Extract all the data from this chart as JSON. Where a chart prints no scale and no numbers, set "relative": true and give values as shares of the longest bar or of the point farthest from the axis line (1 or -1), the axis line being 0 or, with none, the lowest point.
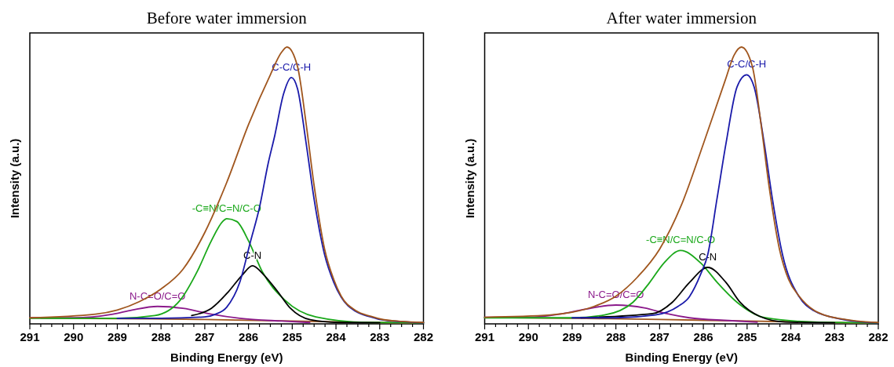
{
  "chart_data": [
    {
      "type": "line",
      "title": "Before water immersion",
      "xlabel": "Binding Energy (eV)",
      "ylabel": "Intensity (a.u.)",
      "relative": true,
      "xlim": [
        291,
        282
      ],
      "xticks": [
        291,
        {
          "value": 290.75,
          "label": null
        },
        {
          "value": 290.5,
          "label": null
        },
        {
          "value": 290.25,
          "label": null
        },
        290,
        {
          "value": 289.75,
          "label": null
        },
        {
          "value": 289.5,
          "label": null
        },
        {
          "value": 289.25,
          "label": null
        },
        289,
        {
          "value": 288.75,
          "label": null
        },
        {
          "value": 288.5,
          "label": null
        },
        {
          "value": 288.25,
          "label": null
        },
        288,
        {
          "value": 287.75,
          "label": null
        },
        {
          "value": 287.5,
          "label": null
        },
        {
          "value": 287.25,
          "label": null
        },
        287,
        {
          "value": 286.75,
          "label": null
        },
        {
          "value": 286.5,
          "label": null
        },
        {
          "value": 286.25,
          "label": null
        },
        286,
        {
          "value": 285.75,
          "label": null
        },
        {
          "value": 285.5,
          "label": null
        },
        {
          "value": 285.25,
          "label": null
        },
        285,
        {
          "value": 284.75,
          "label": null
        },
        {
          "value": 284.5,
          "label": null
        },
        {
          "value": 284.25,
          "label": null
        },
        284,
        {
          "value": 283.75,
          "label": null
        },
        {
          "value": 283.5,
          "label": null
        },
        {
          "value": 283.25,
          "label": null
        },
        283,
        {
          "value": 282.75,
          "label": null
        },
        {
          "value": 282.5,
          "label": null
        },
        {
          "value": 282.25,
          "label": null
        },
        282
      ],
      "tick_labels": "x",
      "series": [
        {
          "color": "#a0561e",
          "x": [
            290.75,
            289,
            287,
            285,
            283,
            282.25
          ],
          "values": [
            0.021,
            0.019,
            0.016,
            0.01,
            0.005,
            0.003
          ]
        },
        {
          "name": "N-C=O/C=O",
          "color": "#8b1a8b",
          "x": [
            291,
            290,
            289.1,
            288.66,
            288.08,
            287.5,
            286.85,
            286.2,
            285.23,
            284.6
          ],
          "values": [
            0.022,
            0.022,
            0.035,
            0.05,
            0.063,
            0.056,
            0.035,
            0.02,
            0.01,
            0.005
          ]
        },
        {
          "name": "-C≡N/C=N/C-O",
          "color": "#1aa81a",
          "x": [
            291,
            290,
            289,
            288.14,
            287.56,
            287.17,
            286.85,
            286.59,
            286.5,
            286.27,
            286,
            285.69,
            285.17,
            284.46,
            283.3,
            282
          ],
          "values": [
            0.02,
            0.02,
            0.02,
            0.03,
            0.086,
            0.19,
            0.3,
            0.37,
            0.38,
            0.37,
            0.3,
            0.19,
            0.086,
            0.025,
            0.005,
            0.004
          ]
        },
        {
          "name": "C-N",
          "color": "#000000",
          "x": [
            287.3,
            286.85,
            286.46,
            286.14,
            285.91,
            285.65,
            285.33,
            285.04,
            284.59,
            283.94,
            283
          ],
          "values": [
            0.03,
            0.056,
            0.116,
            0.177,
            0.21,
            0.177,
            0.116,
            0.056,
            0.015,
            0.005,
            0.004
          ]
        },
        {
          "name": "C-C/C-H",
          "color": "#1a1aaa",
          "x": [
            289,
            288,
            287,
            286.75,
            286.5,
            286.2,
            285.95,
            285.75,
            285.55,
            285.4,
            285.2,
            285.02,
            284.88,
            284.68,
            284.5,
            284.26,
            284.05,
            283.88,
            283.55,
            283.2,
            282.97,
            282.5,
            282
          ],
          "values": [
            0.02,
            0.02,
            0.025,
            0.035,
            0.06,
            0.15,
            0.3,
            0.42,
            0.58,
            0.68,
            0.83,
            0.89,
            0.85,
            0.65,
            0.45,
            0.25,
            0.15,
            0.096,
            0.045,
            0.025,
            0.015,
            0.008,
            0.004
          ]
        },
        {
          "color": "#a0561e",
          "x": [
            291,
            289.5,
            289,
            288.5,
            288,
            287.5,
            287,
            286.5,
            286,
            285.5,
            285.25,
            285.12,
            284.88,
            284.68,
            284.5,
            284.26,
            284.05,
            283.88,
            283.55,
            283.2,
            282.97,
            282.5,
            282
          ],
          "values": [
            0.022,
            0.035,
            0.05,
            0.08,
            0.126,
            0.197,
            0.33,
            0.51,
            0.72,
            0.9,
            0.98,
            1,
            0.93,
            0.72,
            0.5,
            0.27,
            0.16,
            0.1,
            0.048,
            0.027,
            0.017,
            0.009,
            0.005
          ]
        }
      ]
    },
    {
      "type": "line",
      "title": "After water immersion",
      "xlabel": "Binding Energy (eV)",
      "ylabel": "Intensity (a.u.)",
      "relative": true,
      "xlim": [
        291,
        282
      ],
      "xticks": [
        291,
        {
          "value": 290.75,
          "label": null
        },
        {
          "value": 290.5,
          "label": null
        },
        {
          "value": 290.25,
          "label": null
        },
        290,
        {
          "value": 289.75,
          "label": null
        },
        {
          "value": 289.5,
          "label": null
        },
        {
          "value": 289.25,
          "label": null
        },
        289,
        {
          "value": 288.75,
          "label": null
        },
        {
          "value": 288.5,
          "label": null
        },
        {
          "value": 288.25,
          "label": null
        },
        288,
        {
          "value": 287.75,
          "label": null
        },
        {
          "value": 287.5,
          "label": null
        },
        {
          "value": 287.25,
          "label": null
        },
        287,
        {
          "value": 286.75,
          "label": null
        },
        {
          "value": 286.5,
          "label": null
        },
        {
          "value": 286.25,
          "label": null
        },
        286,
        {
          "value": 285.75,
          "label": null
        },
        {
          "value": 285.5,
          "label": null
        },
        {
          "value": 285.25,
          "label": null
        },
        285,
        {
          "value": 284.75,
          "label": null
        },
        {
          "value": 284.5,
          "label": null
        },
        {
          "value": 284.25,
          "label": null
        },
        284,
        {
          "value": 283.75,
          "label": null
        },
        {
          "value": 283.5,
          "label": null
        },
        {
          "value": 283.25,
          "label": null
        },
        283,
        {
          "value": 282.75,
          "label": null
        },
        {
          "value": 282.5,
          "label": null
        },
        {
          "value": 282.25,
          "label": null
        },
        282
      ],
      "tick_labels": "x",
      "series": [
        {
          "color": "#a0561e",
          "x": [
            290.75,
            289,
            287,
            285,
            283,
            282.25
          ],
          "values": [
            0.023,
            0.02,
            0.016,
            0.01,
            0.005,
            0.003
          ]
        },
        {
          "name": "N-C=O/C=O",
          "color": "#8b1a8b",
          "x": [
            291,
            290,
            289.29,
            288.71,
            288,
            287.35,
            286.84,
            286.32,
            285.42,
            284.77
          ],
          "values": [
            0.024,
            0.024,
            0.035,
            0.053,
            0.068,
            0.058,
            0.037,
            0.022,
            0.012,
            0.006
          ]
        },
        {
          "name": "-C≡N/C=N/C-O",
          "color": "#1aa81a",
          "x": [
            291,
            290,
            289,
            288.26,
            287.61,
            287.23,
            286.9,
            286.52,
            286.06,
            285.68,
            285.23,
            284.58,
            283.48,
            282
          ],
          "values": [
            0.022,
            0.022,
            0.022,
            0.032,
            0.078,
            0.149,
            0.22,
            0.265,
            0.22,
            0.149,
            0.078,
            0.022,
            0.007,
            0.004
          ]
        },
        {
          "name": "C-N",
          "color": "#000000",
          "x": [
            288.8,
            287.16,
            286.71,
            286.32,
            285.9,
            285.48,
            285.16,
            284.71,
            284.13,
            283
          ],
          "values": [
            0.022,
            0.037,
            0.078,
            0.149,
            0.204,
            0.149,
            0.078,
            0.027,
            0.007,
            0.004
          ]
        },
        {
          "name": "C-C/C-H",
          "color": "#1a1aaa",
          "x": [
            289,
            288,
            287.1,
            286.58,
            286.32,
            286.06,
            285.9,
            285.69,
            285.48,
            285.23,
            285.01,
            284.84,
            284.61,
            284.42,
            284.19,
            283.81,
            283.48,
            282.84,
            282.5,
            282
          ],
          "values": [
            0.022,
            0.022,
            0.032,
            0.063,
            0.098,
            0.18,
            0.25,
            0.45,
            0.654,
            0.856,
            0.9,
            0.856,
            0.654,
            0.45,
            0.25,
            0.098,
            0.048,
            0.017,
            0.009,
            0.004
          ]
        },
        {
          "color": "#a0561e",
          "x": [
            291,
            289.5,
            289,
            288.5,
            288,
            287.5,
            287,
            286.5,
            286,
            285.5,
            285.3,
            285.13,
            284.88,
            284.68,
            284.5,
            284.26,
            284.05,
            283.81,
            283.48,
            283.2,
            282.84,
            282.5,
            282
          ],
          "values": [
            0.024,
            0.032,
            0.042,
            0.063,
            0.1,
            0.17,
            0.27,
            0.43,
            0.65,
            0.88,
            0.97,
            1,
            0.93,
            0.72,
            0.5,
            0.27,
            0.16,
            0.1,
            0.05,
            0.03,
            0.018,
            0.01,
            0.005
          ]
        }
      ]
    }
  ]
}
